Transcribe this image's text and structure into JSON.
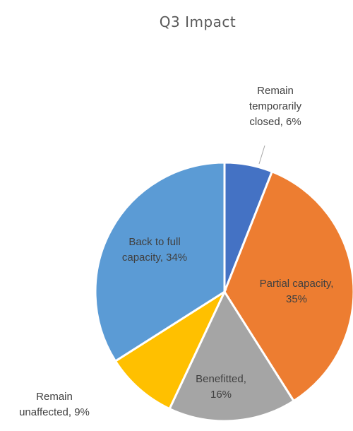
{
  "chart_data": {
    "type": "pie",
    "title": "Q3 Impact",
    "slices": [
      {
        "label_lines": [
          "Remain",
          "temporarily",
          "closed, 6%"
        ],
        "value": 6,
        "color": "#4472C4"
      },
      {
        "label_lines": [
          "Partial capacity,",
          "35%"
        ],
        "value": 35,
        "color": "#ED7D31"
      },
      {
        "label_lines": [
          "Benefitted,",
          "16%"
        ],
        "value": 16,
        "color": "#A5A5A5"
      },
      {
        "label_lines": [
          "Remain",
          "unaffected, 9%"
        ],
        "value": 9,
        "color": "#FFC000"
      },
      {
        "label_lines": [
          "Back to full",
          "capacity, 34%"
        ],
        "value": 34,
        "color": "#5B9BD5"
      }
    ],
    "legend": "none",
    "start_angle_deg": 0,
    "direction": "clockwise"
  }
}
